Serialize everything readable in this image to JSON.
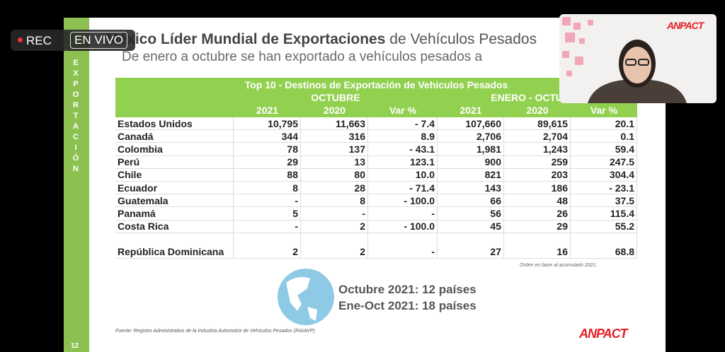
{
  "overlay": {
    "rec": "REC",
    "live": "EN VIVO"
  },
  "slide": {
    "side_label": "EXPORTACIÓN",
    "page": "12",
    "title_bold": "México Líder Mundial de Exportaciones",
    "title_rest": "de Vehículos Pesados",
    "subtitle": "De enero a octubre se han exportado a vehículos pesados a",
    "table": {
      "title": "Top 10 - Destinos de Exportación de Vehiculos Pesados",
      "groups": [
        "OCTUBRE",
        "ENERO - OCTUBRE"
      ],
      "columns": [
        "2021",
        "2020",
        "Var %",
        "2021",
        "2020",
        "Var %"
      ],
      "rows": [
        [
          "Estados Unidos",
          "10,795",
          "11,663",
          "- 7.4",
          "107,660",
          "89,615",
          "20.1"
        ],
        [
          "Canadá",
          "344",
          "316",
          "8.9",
          "2,706",
          "2,704",
          "0.1"
        ],
        [
          "Colombia",
          "78",
          "137",
          "- 43.1",
          "1,981",
          "1,243",
          "59.4"
        ],
        [
          "Perú",
          "29",
          "13",
          "123.1",
          "900",
          "259",
          "247.5"
        ],
        [
          "Chile",
          "88",
          "80",
          "10.0",
          "821",
          "203",
          "304.4"
        ],
        [
          "Ecuador",
          "8",
          "28",
          "- 71.4",
          "143",
          "186",
          "- 23.1"
        ],
        [
          "Guatemala",
          "-",
          "8",
          "- 100.0",
          "66",
          "48",
          "37.5"
        ],
        [
          "Panamá",
          "5",
          "-",
          "-",
          "56",
          "26",
          "115.4"
        ],
        [
          "Costa Rica",
          "-",
          "2",
          "- 100.0",
          "45",
          "29",
          "55.2"
        ],
        [
          "República Dominicana",
          "2",
          "2",
          "-",
          "27",
          "16",
          "68.8"
        ]
      ],
      "note": "Orden en base al acumulado 2021."
    },
    "summary": [
      "Octubre 2021: 12 países",
      "Ene-Oct 2021: 18 países"
    ],
    "source": "Fuente: Registro Administrativo de la Industria Automotriz de Vehículos Pesados (RAIAVP)",
    "logo": "ANPACT"
  },
  "webcam": {
    "logo": "ANPACT"
  }
}
